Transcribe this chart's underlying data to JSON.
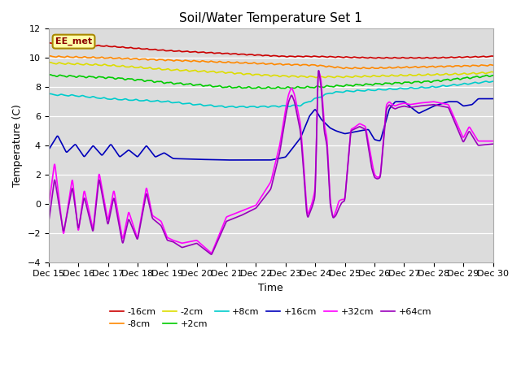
{
  "title": "Soil/Water Temperature Set 1",
  "xlabel": "Time",
  "ylabel": "Temperature (C)",
  "ylim": [
    -4,
    12
  ],
  "xlim": [
    0,
    15
  ],
  "xtick_labels": [
    "Dec 15",
    "Dec 16",
    "Dec 17",
    "Dec 18",
    "Dec 19",
    "Dec 20",
    "Dec 21",
    "Dec 22",
    "Dec 23",
    "Dec 24",
    "Dec 25",
    "Dec 26",
    "Dec 27",
    "Dec 28",
    "Dec 29",
    "Dec 30"
  ],
  "series_colors": {
    "-16cm": "#cc0000",
    "-8cm": "#ff8800",
    "-2cm": "#dddd00",
    "+2cm": "#00cc00",
    "+8cm": "#00cccc",
    "+16cm": "#0000bb",
    "+32cm": "#ff00ff",
    "+64cm": "#9900bb"
  },
  "background_color": "#dcdcdc",
  "annotation_text": "EE_met",
  "annotation_box_color": "#ffffaa",
  "annotation_box_edge": "#aa8800"
}
